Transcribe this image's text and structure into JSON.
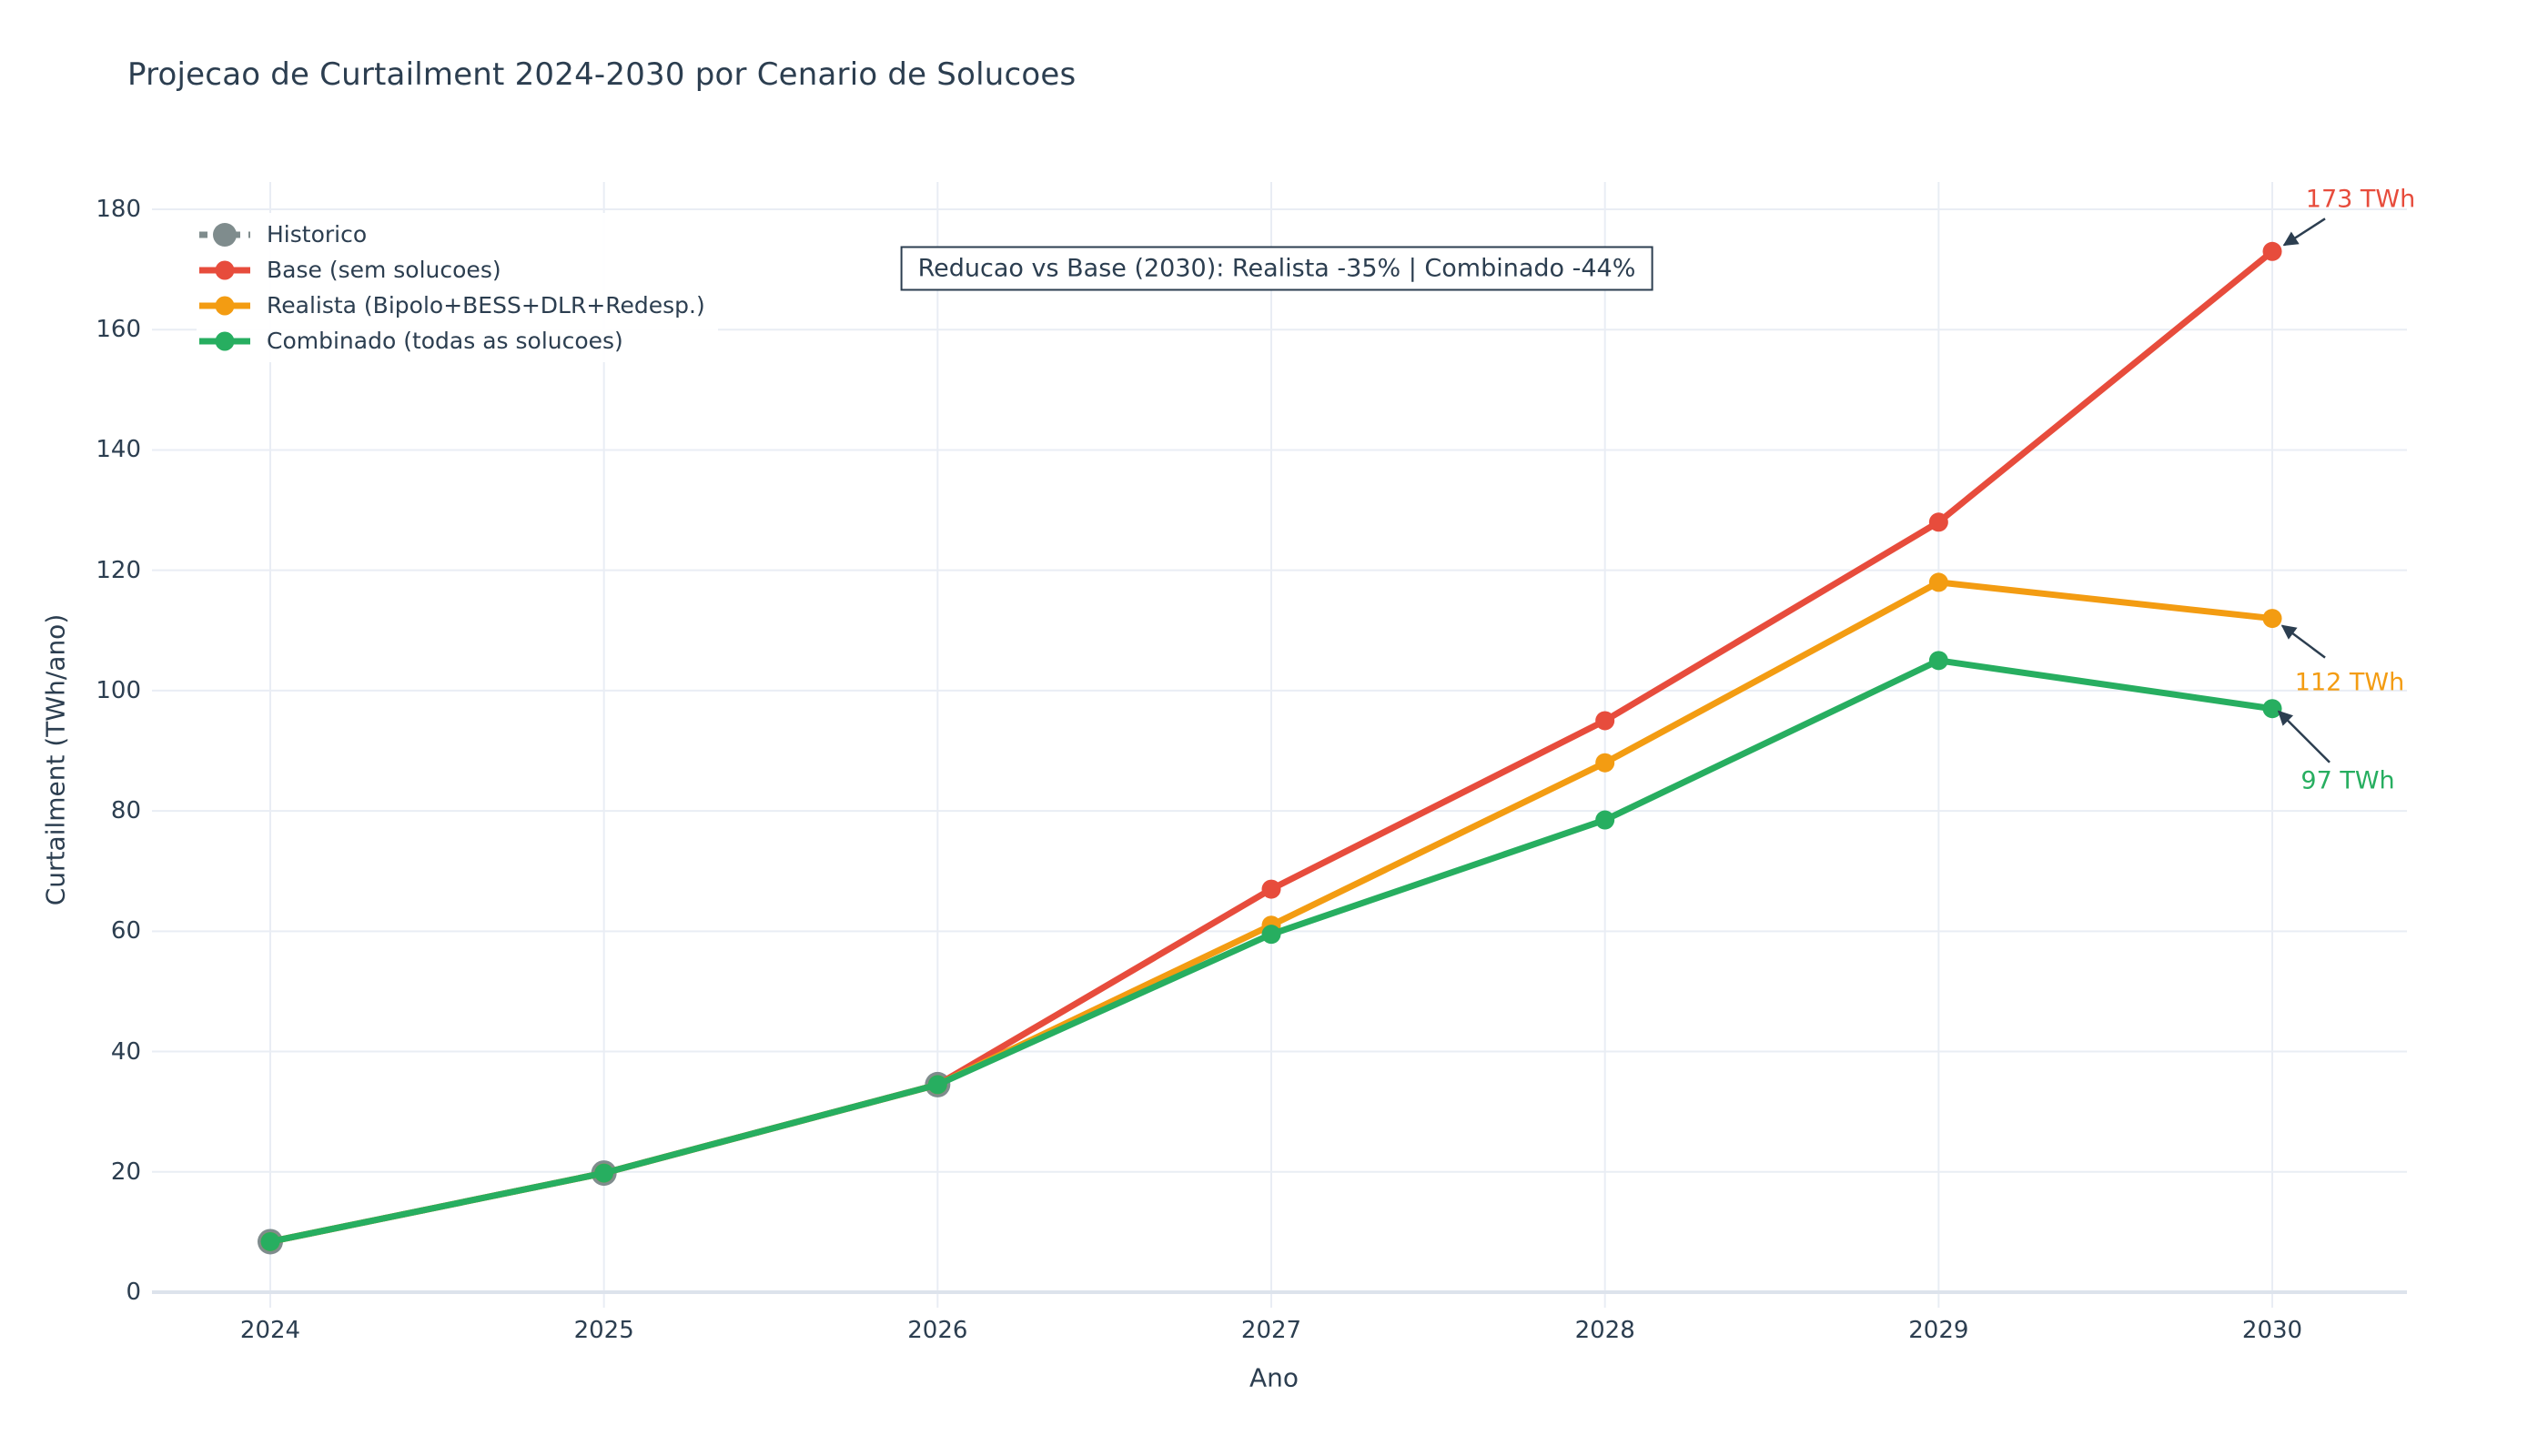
{
  "chart_data": {
    "type": "line",
    "title": "Projecao de Curtailment 2024-2030 por Cenario de Solucoes",
    "xlabel": "Ano",
    "ylabel": "Curtailment (TWh/ano)",
    "x_ticks": [
      2024,
      2025,
      2026,
      2027,
      2028,
      2029,
      2030
    ],
    "y_ticks": [
      0,
      20,
      40,
      60,
      80,
      100,
      120,
      140,
      160,
      180
    ],
    "ylim": [
      -3,
      185
    ],
    "xlim": [
      2023.65,
      2030.4
    ],
    "grid": true,
    "legend_position": "top-left",
    "background": "#ffffff",
    "text_color": "#2c3e50",
    "grid_color": "#e9edf4",
    "axis_line_color": "#dde3ec",
    "series": [
      {
        "name": "Historico",
        "color": "#7f8c8d",
        "line_style": "dashed",
        "marker_radius": 14,
        "x": [
          2024,
          2025,
          2026
        ],
        "values": [
          8.4,
          19.8,
          34.5
        ]
      },
      {
        "name": "Base (sem solucoes)",
        "color": "#e74c3c",
        "line_style": "solid",
        "marker_radius": 10.5,
        "x": [
          2024,
          2025,
          2026,
          2027,
          2028,
          2029,
          2030
        ],
        "values": [
          8.4,
          19.8,
          34.5,
          67,
          95,
          128,
          173
        ]
      },
      {
        "name": "Realista (Bipolo+BESS+DLR+Redesp.)",
        "color": "#f39c12",
        "line_style": "solid",
        "marker_radius": 10.5,
        "x": [
          2024,
          2025,
          2026,
          2027,
          2028,
          2029,
          2030
        ],
        "values": [
          8.4,
          19.8,
          34.5,
          61,
          88,
          118,
          112
        ]
      },
      {
        "name": "Combinado (todas as solucoes)",
        "color": "#27ae60",
        "line_style": "solid",
        "marker_radius": 10.5,
        "x": [
          2024,
          2025,
          2026,
          2027,
          2028,
          2029,
          2030
        ],
        "values": [
          8.4,
          19.8,
          34.5,
          59.5,
          78.5,
          105,
          97
        ]
      }
    ],
    "annotation_box": "Reducao vs Base (2030): Realista -35% | Combinado -44%",
    "end_labels": [
      {
        "text": "173 TWh",
        "series": "Base (sem solucoes)",
        "year": 2030,
        "value": 173
      },
      {
        "text": "112 TWh",
        "series": "Realista (Bipolo+BESS+DLR+Redesp.)",
        "year": 2030,
        "value": 112
      },
      {
        "text": "97 TWh",
        "series": "Combinado (todas as solucoes)",
        "year": 2030,
        "value": 97
      }
    ]
  }
}
